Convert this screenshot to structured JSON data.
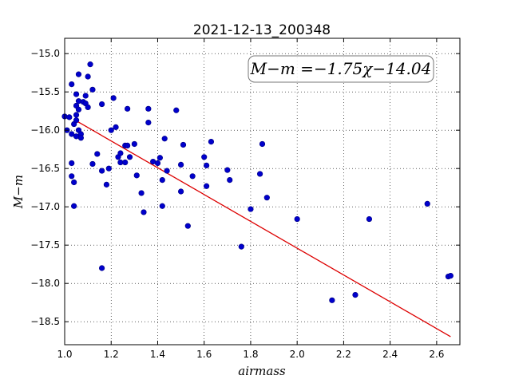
{
  "chart_data": {
    "type": "scatter",
    "title": "2021-12-13_200348",
    "xlabel": "airmass",
    "ylabel": "M−m",
    "xlim": [
      1.0,
      2.7
    ],
    "ylim": [
      -18.8,
      -14.8
    ],
    "y_inverted": true,
    "x_ticks": [
      1.0,
      1.2,
      1.4,
      1.6,
      1.8,
      2.0,
      2.2,
      2.4,
      2.6
    ],
    "x_tick_labels": [
      "1.0",
      "1.2",
      "1.4",
      "1.6",
      "1.8",
      "2.0",
      "2.2",
      "2.4",
      "2.6"
    ],
    "y_ticks": [
      -15.0,
      -15.5,
      -16.0,
      -16.5,
      -17.0,
      -17.5,
      -18.0,
      -18.5
    ],
    "y_tick_labels": [
      "−15.0",
      "−15.5",
      "−16.0",
      "−16.5",
      "−17.0",
      "−17.5",
      "−18.0",
      "−18.5"
    ],
    "grid": true,
    "annotation": "M−m =−1.75χ−14.04",
    "point_color": "#0000cc",
    "fit_color": "#dd0000",
    "fit_line": {
      "slope": -1.75,
      "intercept": -14.04,
      "x_range": [
        1.05,
        2.66
      ]
    },
    "points": [
      {
        "x": 1.0,
        "y": -15.82
      },
      {
        "x": 1.01,
        "y": -16.0
      },
      {
        "x": 1.02,
        "y": -15.83
      },
      {
        "x": 1.03,
        "y": -15.4
      },
      {
        "x": 1.03,
        "y": -16.05
      },
      {
        "x": 1.03,
        "y": -16.43
      },
      {
        "x": 1.03,
        "y": -16.6
      },
      {
        "x": 1.04,
        "y": -15.92
      },
      {
        "x": 1.04,
        "y": -16.68
      },
      {
        "x": 1.04,
        "y": -16.99
      },
      {
        "x": 1.05,
        "y": -15.53
      },
      {
        "x": 1.05,
        "y": -15.68
      },
      {
        "x": 1.05,
        "y": -15.8
      },
      {
        "x": 1.05,
        "y": -15.87
      },
      {
        "x": 1.05,
        "y": -16.08
      },
      {
        "x": 1.06,
        "y": -15.27
      },
      {
        "x": 1.06,
        "y": -15.62
      },
      {
        "x": 1.06,
        "y": -15.73
      },
      {
        "x": 1.06,
        "y": -16.0
      },
      {
        "x": 1.07,
        "y": -16.05
      },
      {
        "x": 1.07,
        "y": -16.1
      },
      {
        "x": 1.08,
        "y": -15.63
      },
      {
        "x": 1.09,
        "y": -15.55
      },
      {
        "x": 1.09,
        "y": -15.65
      },
      {
        "x": 1.1,
        "y": -15.3
      },
      {
        "x": 1.1,
        "y": -15.7
      },
      {
        "x": 1.11,
        "y": -15.14
      },
      {
        "x": 1.12,
        "y": -15.47
      },
      {
        "x": 1.12,
        "y": -16.44
      },
      {
        "x": 1.14,
        "y": -16.31
      },
      {
        "x": 1.16,
        "y": -15.66
      },
      {
        "x": 1.16,
        "y": -16.53
      },
      {
        "x": 1.16,
        "y": -17.8
      },
      {
        "x": 1.18,
        "y": -16.71
      },
      {
        "x": 1.19,
        "y": -16.5
      },
      {
        "x": 1.2,
        "y": -16.0
      },
      {
        "x": 1.21,
        "y": -15.58
      },
      {
        "x": 1.22,
        "y": -15.96
      },
      {
        "x": 1.23,
        "y": -16.35
      },
      {
        "x": 1.24,
        "y": -16.3
      },
      {
        "x": 1.24,
        "y": -16.42
      },
      {
        "x": 1.26,
        "y": -16.2
      },
      {
        "x": 1.26,
        "y": -16.42
      },
      {
        "x": 1.27,
        "y": -15.72
      },
      {
        "x": 1.27,
        "y": -16.2
      },
      {
        "x": 1.28,
        "y": -16.35
      },
      {
        "x": 1.3,
        "y": -16.18
      },
      {
        "x": 1.31,
        "y": -16.59
      },
      {
        "x": 1.33,
        "y": -16.82
      },
      {
        "x": 1.34,
        "y": -17.07
      },
      {
        "x": 1.36,
        "y": -15.72
      },
      {
        "x": 1.36,
        "y": -15.9
      },
      {
        "x": 1.38,
        "y": -16.41
      },
      {
        "x": 1.4,
        "y": -16.43
      },
      {
        "x": 1.41,
        "y": -16.36
      },
      {
        "x": 1.42,
        "y": -16.65
      },
      {
        "x": 1.42,
        "y": -16.99
      },
      {
        "x": 1.43,
        "y": -16.11
      },
      {
        "x": 1.44,
        "y": -16.53
      },
      {
        "x": 1.48,
        "y": -15.74
      },
      {
        "x": 1.5,
        "y": -16.45
      },
      {
        "x": 1.5,
        "y": -16.8
      },
      {
        "x": 1.51,
        "y": -16.19
      },
      {
        "x": 1.53,
        "y": -17.25
      },
      {
        "x": 1.55,
        "y": -16.6
      },
      {
        "x": 1.6,
        "y": -16.35
      },
      {
        "x": 1.61,
        "y": -16.46
      },
      {
        "x": 1.61,
        "y": -16.73
      },
      {
        "x": 1.63,
        "y": -16.15
      },
      {
        "x": 1.7,
        "y": -16.52
      },
      {
        "x": 1.71,
        "y": -16.65
      },
      {
        "x": 1.76,
        "y": -17.52
      },
      {
        "x": 1.8,
        "y": -17.03
      },
      {
        "x": 1.84,
        "y": -16.57
      },
      {
        "x": 1.85,
        "y": -16.18
      },
      {
        "x": 1.87,
        "y": -16.88
      },
      {
        "x": 2.0,
        "y": -17.16
      },
      {
        "x": 2.15,
        "y": -18.22
      },
      {
        "x": 2.25,
        "y": -18.15
      },
      {
        "x": 2.31,
        "y": -17.16
      },
      {
        "x": 2.56,
        "y": -16.96
      },
      {
        "x": 2.65,
        "y": -17.91
      },
      {
        "x": 2.66,
        "y": -17.9
      }
    ]
  }
}
